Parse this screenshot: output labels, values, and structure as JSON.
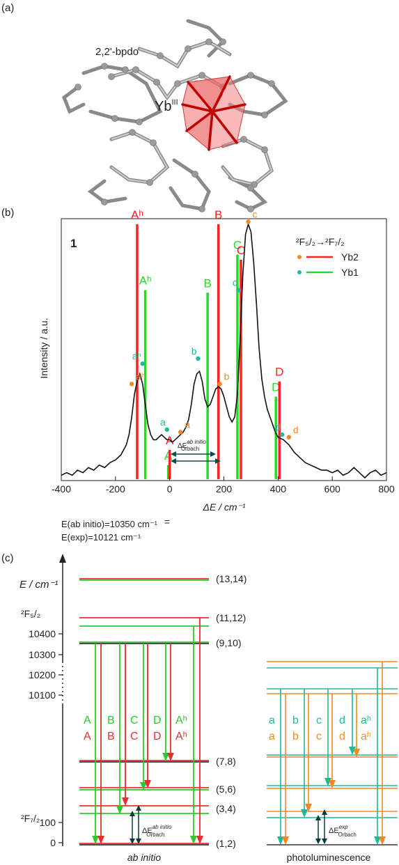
{
  "panels": {
    "a": {
      "label": "(a)",
      "ligand_label": "2,2'-bpdo",
      "metal_label": "Yb",
      "metal_superscript": "III"
    },
    "b": {
      "label": "(b)",
      "compound_label": "1",
      "legend_title": "²F₅/₂→²F₇/₂",
      "legend_items": [
        {
          "name": "Yb2",
          "color": "#ff2020"
        },
        {
          "name": "Yb1",
          "color": "#22dd22"
        }
      ],
      "energy_notes": [
        "E(ab initio)=10350 cm⁻¹",
        "E(exp)=10121 cm⁻¹"
      ],
      "zero_marker": "=",
      "orbach_label": "ΔE",
      "orbach_sup": "ab initio",
      "orbach_sub": "Orbach"
    },
    "c": {
      "label": "(c)",
      "y_axis_label": "E / cm⁻¹",
      "upper_term": "²F₅/₂",
      "lower_term": "²F₇/₂",
      "left_caption": "ab initio",
      "right_caption": "photoluminescence",
      "level_labels": [
        "(13,14)",
        "(11,12)",
        "(9,10)",
        "(7,8)",
        "(5,6)",
        "(3,4)",
        "(1,2)"
      ],
      "tick_labels": [
        "10400",
        "10300",
        "10200",
        "10100",
        "100",
        "0"
      ],
      "ab_initio_transitions": [
        "A",
        "B",
        "C",
        "D",
        "Aʰ"
      ],
      "pl_transitions": [
        "a",
        "b",
        "c",
        "d",
        "aʰ"
      ],
      "orbach_ab_sup": "ab initio",
      "orbach_exp_sup": "exp",
      "orbach_sub": "Orbach"
    }
  },
  "chart_data": {
    "type": "line",
    "xlabel": "ΔE / cm⁻¹",
    "ylabel": "Intensity / a.u.",
    "xlim": [
      -400,
      800
    ],
    "xticks": [
      -400,
      -200,
      0,
      200,
      400,
      600,
      800
    ],
    "grid": false,
    "legend_placement": "top-right",
    "series": [
      {
        "name": "1",
        "color": "#111111",
        "x": [
          -400,
          -380,
          -360,
          -340,
          -320,
          -300,
          -280,
          -260,
          -240,
          -220,
          -200,
          -180,
          -160,
          -150,
          -140,
          -130,
          -120,
          -110,
          -100,
          -90,
          -80,
          -70,
          -60,
          -50,
          -40,
          -30,
          -20,
          -10,
          0,
          10,
          20,
          30,
          40,
          50,
          60,
          70,
          80,
          90,
          100,
          110,
          120,
          130,
          140,
          150,
          160,
          170,
          180,
          190,
          200,
          210,
          220,
          230,
          240,
          250,
          260,
          270,
          280,
          290,
          300,
          310,
          320,
          330,
          340,
          350,
          360,
          370,
          380,
          390,
          400,
          420,
          440,
          460,
          480,
          500,
          520,
          540,
          560,
          580,
          600,
          620,
          640,
          660,
          680,
          700,
          720,
          740,
          760,
          780,
          800
        ],
        "y": [
          0.01,
          0.02,
          0.01,
          0.03,
          0.02,
          0.04,
          0.03,
          0.05,
          0.04,
          0.06,
          0.07,
          0.09,
          0.13,
          0.17,
          0.24,
          0.33,
          0.38,
          0.41,
          0.37,
          0.29,
          0.21,
          0.17,
          0.15,
          0.15,
          0.16,
          0.17,
          0.16,
          0.15,
          0.15,
          0.14,
          0.15,
          0.16,
          0.17,
          0.18,
          0.2,
          0.23,
          0.29,
          0.37,
          0.41,
          0.42,
          0.38,
          0.31,
          0.28,
          0.29,
          0.32,
          0.35,
          0.36,
          0.35,
          0.32,
          0.28,
          0.24,
          0.22,
          0.24,
          0.33,
          0.55,
          0.8,
          0.96,
          1.0,
          0.97,
          0.85,
          0.69,
          0.51,
          0.39,
          0.32,
          0.27,
          0.24,
          0.21,
          0.18,
          0.16,
          0.15,
          0.13,
          0.1,
          0.08,
          0.06,
          0.05,
          0.04,
          0.03,
          0.03,
          0.02,
          0.03,
          0.01,
          0.02,
          0.04,
          0.02,
          0.0,
          0.02,
          0.03,
          0.01,
          0.02
        ]
      }
    ],
    "stick_transitions": {
      "Yb2": [
        {
          "label": "Aʰ",
          "x": -120,
          "height": 1.0
        },
        {
          "label": "A",
          "x": 0,
          "height": 0.11
        },
        {
          "label": "B",
          "x": 180,
          "height": 1.0
        },
        {
          "label": "C",
          "x": 263,
          "height": 0.86
        },
        {
          "label": "D",
          "x": 405,
          "height": 0.38
        }
      ],
      "Yb1": [
        {
          "label": "Aʰ",
          "x": -90,
          "height": 0.74
        },
        {
          "label": "A",
          "x": -5,
          "height": 0.05
        },
        {
          "label": "B",
          "x": 140,
          "height": 0.73
        },
        {
          "label": "C",
          "x": 250,
          "height": 0.88
        },
        {
          "label": "D",
          "x": 392,
          "height": 0.32
        }
      ]
    },
    "experimental_points": {
      "Yb2": [
        {
          "label": "aʰ",
          "x": -140,
          "y": 0.37
        },
        {
          "label": "a",
          "x": 40,
          "y": 0.18
        },
        {
          "label": "b",
          "x": 185,
          "y": 0.37
        },
        {
          "label": "c",
          "x": 290,
          "y": 1.01
        },
        {
          "label": "d",
          "x": 440,
          "y": 0.16
        }
      ],
      "Yb1": [
        {
          "label": "aʰ",
          "x": -100,
          "y": 0.45
        },
        {
          "label": "a",
          "x": -10,
          "y": 0.19
        },
        {
          "label": "b",
          "x": 105,
          "y": 0.47
        },
        {
          "label": "c",
          "x": 255,
          "y": 0.74
        },
        {
          "label": "d",
          "x": 415,
          "y": 0.17
        }
      ]
    }
  }
}
